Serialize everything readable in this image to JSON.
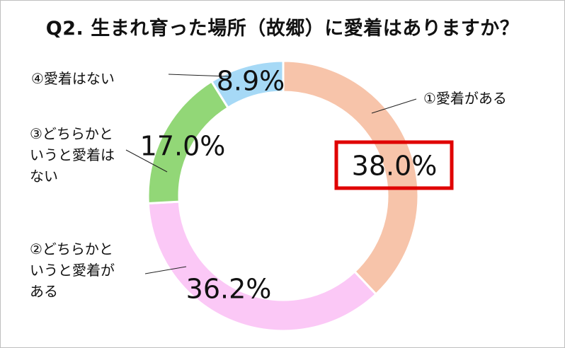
{
  "title": "Q2. 生まれ育った場所（故郷）に愛着はありますか？",
  "chart_data": {
    "type": "pie",
    "donut": true,
    "title": "Q2. 生まれ育った場所（故郷）に愛着はありますか？",
    "categories": [
      "①愛着がある",
      "②どちらかというと愛着がある",
      "③どちらかというと愛着はない",
      "④愛着はない"
    ],
    "label_lines": [
      [
        "①愛着がある"
      ],
      [
        "②どちらかと",
        "いうと愛着が",
        "ある"
      ],
      [
        "③どちらかと",
        "いうと愛着は",
        "ない"
      ],
      [
        "④愛着はない"
      ]
    ],
    "values": [
      38.0,
      36.2,
      17.0,
      8.9
    ],
    "value_labels": [
      "38.0%",
      "36.2%",
      "17.0%",
      "8.9%"
    ],
    "colors": [
      "#f7c4aa",
      "#fbc8f6",
      "#92d777",
      "#a6d9f6"
    ],
    "highlight": {
      "index": 0,
      "color": "#e00000"
    }
  }
}
